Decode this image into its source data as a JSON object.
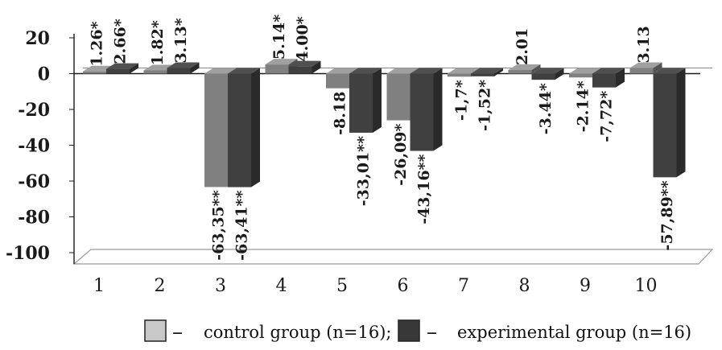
{
  "chart_data": {
    "type": "bar",
    "categories": [
      "1",
      "2",
      "3",
      "4",
      "5",
      "6",
      "7",
      "8",
      "9",
      "10"
    ],
    "ylim": [
      -100,
      20
    ],
    "yticks": [
      "20",
      "0",
      "-20",
      "-40",
      "-60",
      "-80",
      "-100"
    ],
    "series": [
      {
        "name": "control group (n=16);",
        "color": "#808080",
        "values": [
          1.26,
          1.82,
          -63.35,
          5.14,
          -8.18,
          -26.09,
          -1.7,
          2.01,
          -2.14,
          3.13
        ],
        "labels": [
          "1.26*",
          "1.82*",
          "-63,35**",
          "5.14*",
          "-8.18",
          "-26,09*",
          "-1,7*",
          "2.01",
          "-2.14*",
          "3.13"
        ]
      },
      {
        "name": "experimental group (n=16)",
        "color": "#404040",
        "values": [
          2.66,
          3.13,
          -63.41,
          4.0,
          -33.01,
          -43.16,
          -1.52,
          -3.44,
          -7.72,
          -57.89
        ],
        "labels": [
          "2.66*",
          "3.13*",
          "-63,41**",
          "4.00*",
          "-33,01**",
          "-43,16**",
          "-1,52*",
          "-3.44*",
          "-7,72*",
          "-57,89**"
        ]
      }
    ],
    "legend_position": "bottom",
    "legend_dash": "–",
    "grid": false
  }
}
